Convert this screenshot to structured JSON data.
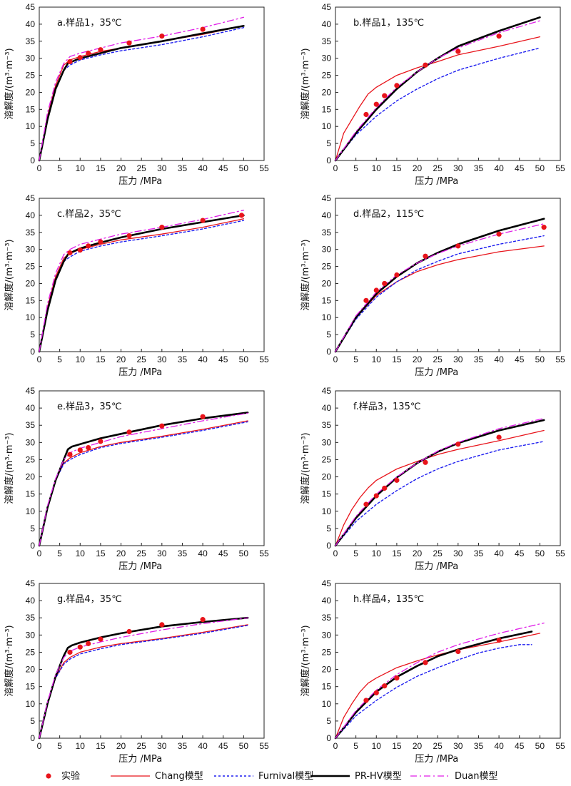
{
  "figure": {
    "xlabel": "压力 /MPa",
    "ylabel": "溶解度/(m³·m⁻³)",
    "xticks": [
      0,
      5,
      10,
      15,
      20,
      25,
      30,
      35,
      40,
      45,
      50,
      55
    ],
    "yticks": [
      0,
      5,
      10,
      15,
      20,
      25,
      30,
      35,
      40,
      45
    ]
  },
  "legend": [
    {
      "key": "exp",
      "label": "实验"
    },
    {
      "key": "chang",
      "label": "Chang模型"
    },
    {
      "key": "furnival",
      "label": "Furnival模型"
    },
    {
      "key": "prhv",
      "label": "PR-HV模型"
    },
    {
      "key": "duan",
      "label": "Duan模型"
    }
  ],
  "styles": {
    "exp": {
      "color": "#e8141b"
    },
    "chang": {
      "color": "#e8141b"
    },
    "furnival": {
      "color": "#1d1df0"
    },
    "prhv": {
      "color": "#000000"
    },
    "duan": {
      "color": "#e01ee8"
    }
  },
  "chart_data": [
    {
      "type": "line",
      "title": "a.样品1，35℃",
      "xlim": [
        0,
        55
      ],
      "ylim": [
        0,
        45
      ],
      "experiment": {
        "x": [
          7.5,
          10,
          12,
          15,
          22,
          30,
          40
        ],
        "y": [
          29,
          30.2,
          31.5,
          32.5,
          34.5,
          36.5,
          38.5
        ]
      },
      "series": [
        {
          "name": "Chang模型",
          "x": [
            0,
            2,
            4,
            6,
            7.5,
            10,
            15,
            20,
            30,
            40,
            50
          ],
          "y": [
            0,
            13,
            22,
            28,
            29.5,
            30.5,
            32,
            33,
            35,
            37,
            39.5
          ]
        },
        {
          "name": "Furnival模型",
          "x": [
            0,
            2,
            4,
            6,
            7.5,
            10,
            15,
            20,
            30,
            40,
            50
          ],
          "y": [
            0,
            12,
            21,
            26.5,
            28,
            29.5,
            31,
            32.2,
            34,
            36.3,
            39
          ]
        },
        {
          "name": "PR-HV模型",
          "x": [
            0,
            2,
            4,
            6,
            7,
            8,
            10,
            15,
            20,
            30,
            40,
            50
          ],
          "y": [
            0,
            12,
            21,
            26.5,
            28.5,
            29,
            30,
            31.5,
            33,
            35,
            37.3,
            39.5
          ]
        },
        {
          "name": "Duan模型",
          "x": [
            0,
            2,
            4,
            6,
            7.5,
            10,
            15,
            20,
            30,
            40,
            50
          ],
          "y": [
            0,
            14,
            23,
            28.5,
            30.5,
            31.5,
            33,
            34.5,
            36.5,
            39,
            42
          ]
        }
      ]
    },
    {
      "type": "line",
      "title": "b.样品1，135℃",
      "xlim": [
        0,
        55
      ],
      "ylim": [
        0,
        45
      ],
      "experiment": {
        "x": [
          7.5,
          10,
          12,
          15,
          22,
          30,
          40
        ],
        "y": [
          13.5,
          16.5,
          19,
          22,
          28,
          32,
          36.5
        ]
      },
      "series": [
        {
          "name": "Chang模型",
          "x": [
            0,
            2,
            4,
            6,
            8,
            10,
            15,
            20,
            25,
            30,
            40,
            50
          ],
          "y": [
            0,
            8,
            12,
            16,
            19.5,
            21.5,
            25,
            27.2,
            29,
            31,
            33.5,
            36.3
          ]
        },
        {
          "name": "Furnival模型",
          "x": [
            0,
            5,
            10,
            15,
            20,
            25,
            30,
            40,
            50
          ],
          "y": [
            0,
            7.5,
            13,
            17.5,
            21,
            24,
            26.5,
            30,
            33
          ]
        },
        {
          "name": "PR-HV模型",
          "x": [
            0,
            5,
            10,
            15,
            20,
            25,
            30,
            40,
            50
          ],
          "y": [
            0,
            8,
            15,
            21,
            26,
            30,
            33.5,
            38,
            42
          ]
        },
        {
          "name": "Duan模型",
          "x": [
            0,
            5,
            10,
            15,
            20,
            25,
            30,
            40,
            50
          ],
          "y": [
            0,
            8.5,
            15.5,
            21.5,
            26,
            30,
            33,
            37.5,
            41
          ]
        }
      ]
    },
    {
      "type": "line",
      "title": "c.样品2，35℃",
      "xlim": [
        0,
        55
      ],
      "ylim": [
        0,
        45
      ],
      "experiment": {
        "x": [
          7.5,
          10,
          12,
          15,
          22,
          30,
          40,
          49.5
        ],
        "y": [
          29,
          29.8,
          31,
          32.2,
          34,
          36.5,
          38.5,
          40
        ]
      },
      "series": [
        {
          "name": "Chang模型",
          "x": [
            0,
            2,
            4,
            6,
            7.5,
            10,
            15,
            20,
            30,
            40,
            50
          ],
          "y": [
            0,
            13,
            22,
            27.5,
            28.8,
            30,
            31.5,
            32.8,
            34.5,
            36.5,
            39
          ]
        },
        {
          "name": "Furnival模型",
          "x": [
            0,
            2,
            4,
            6,
            7.5,
            10,
            15,
            20,
            30,
            40,
            50
          ],
          "y": [
            0,
            12,
            21,
            26.5,
            27.8,
            29.5,
            31,
            32.2,
            34,
            36,
            38.5
          ]
        },
        {
          "name": "PR-HV模型",
          "x": [
            0,
            2,
            4,
            6,
            7,
            8,
            10,
            15,
            20,
            30,
            40,
            50
          ],
          "y": [
            0,
            12,
            21,
            26.5,
            28.5,
            29.2,
            30.3,
            32,
            33.5,
            36,
            38,
            40
          ]
        },
        {
          "name": "Duan模型",
          "x": [
            0,
            2,
            4,
            6,
            7.5,
            10,
            15,
            20,
            30,
            40,
            50
          ],
          "y": [
            0,
            14,
            23,
            28.5,
            30,
            31.5,
            33,
            34.5,
            36.5,
            38.8,
            41.5
          ]
        }
      ]
    },
    {
      "type": "line",
      "title": "d.样品2，115℃",
      "xlim": [
        0,
        55
      ],
      "ylim": [
        0,
        45
      ],
      "experiment": {
        "x": [
          7.5,
          10,
          12,
          15,
          22,
          30,
          40,
          51
        ],
        "y": [
          15,
          18,
          20,
          22.5,
          28,
          31,
          34.5,
          36.5
        ]
      },
      "series": [
        {
          "name": "Chang模型",
          "x": [
            0,
            5,
            10,
            15,
            20,
            25,
            30,
            40,
            51
          ],
          "y": [
            0,
            10,
            16.5,
            20.5,
            23.5,
            25.5,
            27,
            29.3,
            31
          ]
        },
        {
          "name": "Furnival模型",
          "x": [
            0,
            5,
            10,
            15,
            20,
            25,
            30,
            40,
            51
          ],
          "y": [
            0,
            9.5,
            16,
            20.5,
            24,
            26.5,
            28.7,
            31.5,
            34
          ]
        },
        {
          "name": "PR-HV模型",
          "x": [
            0,
            5,
            10,
            15,
            20,
            25,
            30,
            40,
            51
          ],
          "y": [
            0,
            10,
            17,
            22,
            26,
            29,
            31.5,
            35.5,
            39
          ]
        },
        {
          "name": "Duan模型",
          "x": [
            0,
            5,
            10,
            15,
            20,
            25,
            30,
            40,
            51
          ],
          "y": [
            0,
            10.5,
            17.5,
            22.5,
            26,
            28.8,
            31,
            34.5,
            37.5
          ]
        }
      ]
    },
    {
      "type": "line",
      "title": "e.样品3，35℃",
      "xlim": [
        0,
        55
      ],
      "ylim": [
        0,
        45
      ],
      "experiment": {
        "x": [
          7.5,
          10,
          12,
          15,
          22,
          30,
          40
        ],
        "y": [
          26.5,
          27.8,
          28.5,
          30.3,
          33,
          34.8,
          37.5
        ]
      },
      "series": [
        {
          "name": "Chang模型",
          "x": [
            0,
            2,
            4,
            6,
            7.5,
            10,
            15,
            20,
            30,
            40,
            51
          ],
          "y": [
            0,
            11,
            19,
            24,
            25.5,
            27,
            28.8,
            30,
            31.8,
            33.8,
            36.3
          ]
        },
        {
          "name": "Furnival模型",
          "x": [
            0,
            2,
            4,
            6,
            7.5,
            10,
            15,
            20,
            30,
            40,
            51
          ],
          "y": [
            0,
            11,
            19,
            23.8,
            25,
            26.5,
            28.5,
            29.7,
            31.5,
            33.5,
            36
          ]
        },
        {
          "name": "PR-HV模型",
          "x": [
            0,
            2,
            4,
            6,
            7,
            8,
            10,
            15,
            20,
            30,
            40,
            51
          ],
          "y": [
            0,
            11,
            19,
            25,
            28,
            28.8,
            29.5,
            31.2,
            32.5,
            35,
            37,
            38.7
          ]
        },
        {
          "name": "Duan模型",
          "x": [
            0,
            2,
            4,
            6,
            7.5,
            10,
            15,
            20,
            30,
            40,
            51
          ],
          "y": [
            0,
            11.5,
            19.5,
            25,
            27,
            28.3,
            30,
            31.7,
            34,
            36.3,
            38.5
          ]
        }
      ]
    },
    {
      "type": "line",
      "title": "f.样品3，135℃",
      "xlim": [
        0,
        55
      ],
      "ylim": [
        0,
        45
      ],
      "experiment": {
        "x": [
          7.5,
          10,
          12,
          15,
          22,
          30,
          40
        ],
        "y": [
          12,
          14.5,
          16.7,
          19,
          24.2,
          29.5,
          31.5
        ]
      },
      "series": [
        {
          "name": "Chang模型",
          "x": [
            0,
            2,
            4,
            6,
            8,
            10,
            15,
            20,
            25,
            30,
            40,
            51
          ],
          "y": [
            0,
            6,
            10.5,
            14,
            16.8,
            19,
            22.3,
            24.5,
            26.5,
            28,
            30.5,
            33.5
          ]
        },
        {
          "name": "Furnival模型",
          "x": [
            0,
            5,
            10,
            15,
            20,
            25,
            30,
            40,
            51
          ],
          "y": [
            0,
            7,
            12,
            16,
            19.5,
            22.3,
            24.5,
            27.8,
            30.3
          ]
        },
        {
          "name": "PR-HV模型",
          "x": [
            0,
            5,
            10,
            15,
            20,
            25,
            30,
            40,
            51
          ],
          "y": [
            0,
            8,
            14.5,
            19.8,
            24,
            27.3,
            29.8,
            33.5,
            36.5
          ]
        },
        {
          "name": "Duan模型",
          "x": [
            0,
            5,
            10,
            15,
            20,
            25,
            30,
            40,
            51
          ],
          "y": [
            0,
            8.5,
            15,
            20,
            24,
            27.5,
            30,
            34,
            37
          ]
        }
      ]
    },
    {
      "type": "line",
      "title": "g.样品4，35℃",
      "xlim": [
        0,
        55
      ],
      "ylim": [
        0,
        45
      ],
      "experiment": {
        "x": [
          7.5,
          10,
          12,
          15,
          22,
          30,
          40
        ],
        "y": [
          25,
          26.5,
          27.5,
          28.8,
          31,
          33,
          34.5
        ]
      },
      "series": [
        {
          "name": "Chang模型",
          "x": [
            0,
            2,
            4,
            6,
            7.5,
            10,
            15,
            20,
            30,
            40,
            51
          ],
          "y": [
            0,
            10,
            17.5,
            22,
            23.5,
            25,
            26.5,
            27.5,
            29,
            30.8,
            33
          ]
        },
        {
          "name": "Furnival模型",
          "x": [
            0,
            2,
            4,
            6,
            7.5,
            10,
            15,
            20,
            30,
            40,
            51
          ],
          "y": [
            0,
            10,
            17.5,
            21.5,
            23,
            24.5,
            26,
            27.2,
            28.8,
            30.5,
            32.8
          ]
        },
        {
          "name": "PR-HV模型",
          "x": [
            0,
            2,
            4,
            6,
            7,
            8,
            10,
            15,
            20,
            30,
            40,
            51
          ],
          "y": [
            0,
            10,
            18,
            24,
            26.3,
            27,
            27.8,
            29.3,
            30.5,
            32.5,
            33.8,
            35
          ]
        },
        {
          "name": "Duan模型",
          "x": [
            0,
            2,
            4,
            6,
            7.5,
            10,
            15,
            20,
            30,
            40,
            51
          ],
          "y": [
            0,
            10.5,
            18.5,
            23.5,
            25.3,
            26.5,
            28,
            29.3,
            31.5,
            33.3,
            35
          ]
        }
      ]
    },
    {
      "type": "line",
      "title": "h.样品4，135℃",
      "xlim": [
        0,
        55
      ],
      "ylim": [
        0,
        45
      ],
      "experiment": {
        "x": [
          7.5,
          10,
          12,
          15,
          22,
          30,
          40
        ],
        "y": [
          11,
          13.2,
          15.2,
          17.5,
          22,
          25.2,
          28.5
        ]
      },
      "series": [
        {
          "name": "Chang模型",
          "x": [
            0,
            2,
            4,
            6,
            8,
            10,
            15,
            20,
            25,
            30,
            40,
            50
          ],
          "y": [
            0,
            6,
            10,
            13.5,
            16,
            17.5,
            20.5,
            22.5,
            24.2,
            25.7,
            28,
            30.5
          ]
        },
        {
          "name": "Furnival模型",
          "x": [
            0,
            5,
            10,
            15,
            20,
            25,
            30,
            35,
            40,
            45,
            48
          ],
          "y": [
            0,
            6.5,
            11,
            14.8,
            18,
            20.5,
            22.8,
            24.8,
            26.2,
            27.2,
            27.2
          ]
        },
        {
          "name": "PR-HV模型",
          "x": [
            0,
            5,
            10,
            15,
            20,
            25,
            30,
            40,
            48
          ],
          "y": [
            0,
            7.5,
            13.5,
            17.8,
            21,
            23.8,
            25.8,
            29,
            31
          ]
        },
        {
          "name": "Duan模型",
          "x": [
            0,
            5,
            10,
            15,
            20,
            25,
            30,
            40,
            51
          ],
          "y": [
            0,
            8,
            14,
            18.5,
            22,
            25,
            27.2,
            30.5,
            33.5
          ]
        }
      ]
    }
  ]
}
